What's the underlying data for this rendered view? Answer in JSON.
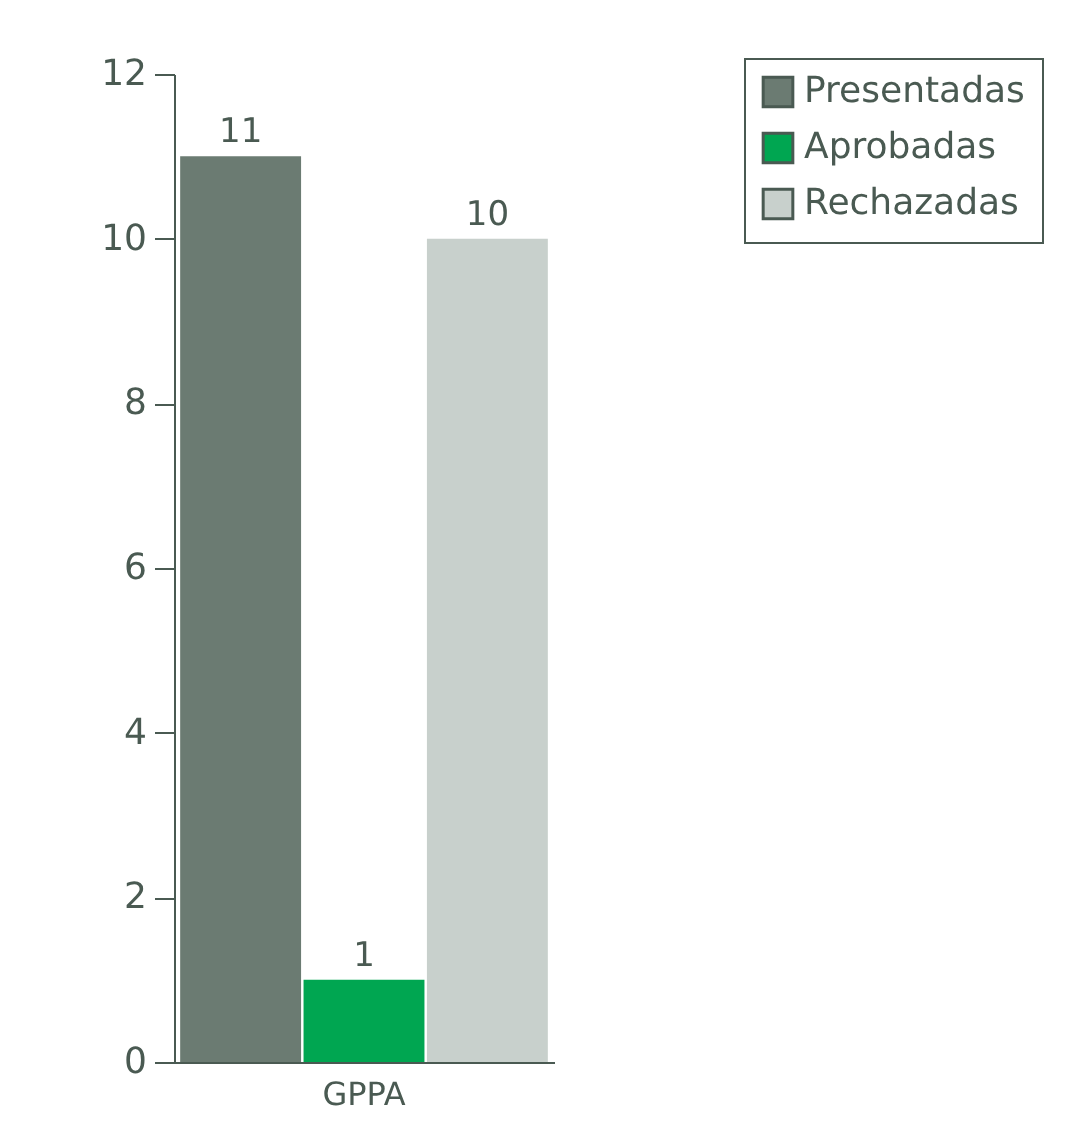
{
  "chart_data": {
    "type": "bar",
    "categories": [
      null,
      "GPPA",
      null
    ],
    "series": [
      {
        "name": "Presentadas",
        "color": "#6b7b72",
        "values": [
          11,
          null,
          null
        ]
      },
      {
        "name": "Aprobadas",
        "color": "#00a651",
        "values": [
          null,
          1,
          null
        ]
      },
      {
        "name": "Rechazadas",
        "color": "#c8d0cc",
        "values": [
          null,
          null,
          10
        ]
      }
    ],
    "ylim": [
      0,
      12
    ],
    "yticks": [
      0,
      2,
      4,
      6,
      8,
      10,
      12
    ],
    "grid": false,
    "legend": "top right",
    "data_labels": true
  }
}
